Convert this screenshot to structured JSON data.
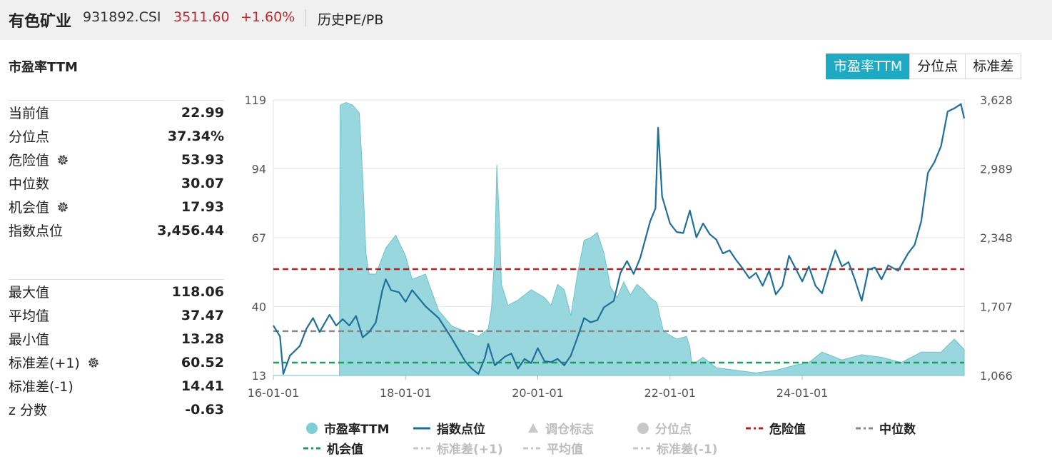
{
  "header": {
    "name": "有色矿业",
    "code": "931892.CSI",
    "price": "3511.60",
    "change": "+1.60%",
    "link": "历史PE/PB"
  },
  "section_title": "市盈率TTM",
  "tabs": [
    "市盈率TTM",
    "分位点",
    "标准差"
  ],
  "stats_top": [
    {
      "label": "当前值",
      "value": "22.99"
    },
    {
      "label": "分位点",
      "value": "37.34%"
    },
    {
      "label": "危险值",
      "value": "53.93"
    },
    {
      "label": "中位数",
      "value": "30.07"
    },
    {
      "label": "机会值",
      "value": "17.93"
    },
    {
      "label": "指数点位",
      "value": "3,456.44"
    }
  ],
  "stats_bottom": [
    {
      "label": "最大值",
      "value": "118.06"
    },
    {
      "label": "平均值",
      "value": "37.47"
    },
    {
      "label": "最小值",
      "value": "13.28"
    },
    {
      "label": "标准差(+1)",
      "value": "60.52"
    },
    {
      "label": "标准差(-1)",
      "value": "14.41"
    },
    {
      "label": "z 分数",
      "value": "-0.63"
    }
  ],
  "legend": [
    {
      "label": "市盈率TTM",
      "marker": "circle",
      "color": "#7fcdd5",
      "active": true
    },
    {
      "label": "指数点位",
      "marker": "line",
      "color": "#1f6f9a",
      "active": true
    },
    {
      "label": "调仓标志",
      "marker": "triangle",
      "color": "#c8c8c8",
      "active": false
    },
    {
      "label": "分位点",
      "marker": "circle",
      "color": "#c8c8c8",
      "active": false
    },
    {
      "label": "危险值",
      "marker": "dash",
      "color": "#b22222",
      "active": true
    },
    {
      "label": "中位数",
      "marker": "dash",
      "color": "#888888",
      "active": true
    },
    {
      "label": "机会值",
      "marker": "dash",
      "color": "#1e9e5a",
      "active": true
    },
    {
      "label": "标准差(+1)",
      "marker": "dash",
      "color": "#c8c8c8",
      "active": false
    },
    {
      "label": "平均值",
      "marker": "dash",
      "color": "#c8c8c8",
      "active": false
    },
    {
      "label": "标准差(-1)",
      "marker": "dash",
      "color": "#c8c8c8",
      "active": false
    }
  ],
  "chart_data": {
    "type": "area",
    "x_ticks": [
      "16-01-01",
      "18-01-01",
      "20-01-01",
      "22-01-01",
      "24-01-01"
    ],
    "x_range": [
      2016.0,
      2026.45
    ],
    "left_axis": {
      "ticks": [
        "119",
        "94",
        "67",
        "40",
        "13"
      ],
      "range": [
        13,
        119
      ]
    },
    "right_axis": {
      "ticks": [
        "3,628",
        "2,989",
        "2,348",
        "1,707",
        "1,066"
      ],
      "range": [
        1066,
        3628
      ]
    },
    "reference_lines": {
      "危险值": 53.93,
      "中位数": 30.07,
      "机会值": 17.93
    },
    "series": [
      {
        "name": "市盈率TTM",
        "axis": "left",
        "points": [
          [
            2016.0,
            13
          ],
          [
            2016.2,
            13
          ],
          [
            2016.5,
            13
          ],
          [
            2016.8,
            13
          ],
          [
            2017.0,
            13
          ],
          [
            2017.01,
            117
          ],
          [
            2017.1,
            118
          ],
          [
            2017.2,
            117
          ],
          [
            2017.3,
            114
          ],
          [
            2017.35,
            90
          ],
          [
            2017.4,
            60
          ],
          [
            2017.45,
            52
          ],
          [
            2017.55,
            52
          ],
          [
            2017.7,
            62
          ],
          [
            2017.85,
            67
          ],
          [
            2018.0,
            59
          ],
          [
            2018.1,
            50
          ],
          [
            2018.3,
            52
          ],
          [
            2018.5,
            38
          ],
          [
            2018.7,
            32
          ],
          [
            2018.9,
            30
          ],
          [
            2019.1,
            28
          ],
          [
            2019.25,
            31
          ],
          [
            2019.3,
            39
          ],
          [
            2019.35,
            60
          ],
          [
            2019.38,
            94
          ],
          [
            2019.42,
            72
          ],
          [
            2019.45,
            48
          ],
          [
            2019.55,
            40
          ],
          [
            2019.7,
            42
          ],
          [
            2019.9,
            46
          ],
          [
            2020.1,
            43
          ],
          [
            2020.2,
            40
          ],
          [
            2020.3,
            48
          ],
          [
            2020.4,
            46
          ],
          [
            2020.5,
            36
          ],
          [
            2020.6,
            52
          ],
          [
            2020.7,
            65
          ],
          [
            2020.8,
            66
          ],
          [
            2020.9,
            68
          ],
          [
            2021.0,
            60
          ],
          [
            2021.1,
            47
          ],
          [
            2021.2,
            43
          ],
          [
            2021.3,
            49
          ],
          [
            2021.4,
            44
          ],
          [
            2021.5,
            48
          ],
          [
            2021.6,
            46
          ],
          [
            2021.7,
            43
          ],
          [
            2021.8,
            41
          ],
          [
            2021.9,
            30
          ],
          [
            2022.1,
            27
          ],
          [
            2022.25,
            28
          ],
          [
            2022.3,
            24
          ],
          [
            2022.33,
            17
          ],
          [
            2022.5,
            20
          ],
          [
            2022.7,
            16
          ],
          [
            2023.0,
            15
          ],
          [
            2023.3,
            14
          ],
          [
            2023.6,
            15
          ],
          [
            2023.9,
            17
          ],
          [
            2024.1,
            18
          ],
          [
            2024.3,
            22
          ],
          [
            2024.6,
            19
          ],
          [
            2024.9,
            21
          ],
          [
            2025.2,
            20
          ],
          [
            2025.5,
            18
          ],
          [
            2025.8,
            22
          ],
          [
            2026.1,
            22
          ],
          [
            2026.3,
            27
          ],
          [
            2026.45,
            23
          ]
        ]
      },
      {
        "name": "指数点位",
        "axis": "right",
        "points": [
          [
            2016.0,
            1530
          ],
          [
            2016.1,
            1430
          ],
          [
            2016.15,
            1080
          ],
          [
            2016.25,
            1250
          ],
          [
            2016.4,
            1340
          ],
          [
            2016.5,
            1500
          ],
          [
            2016.6,
            1600
          ],
          [
            2016.7,
            1470
          ],
          [
            2016.85,
            1630
          ],
          [
            2016.95,
            1530
          ],
          [
            2017.05,
            1590
          ],
          [
            2017.15,
            1530
          ],
          [
            2017.25,
            1620
          ],
          [
            2017.35,
            1420
          ],
          [
            2017.45,
            1470
          ],
          [
            2017.55,
            1560
          ],
          [
            2017.65,
            1860
          ],
          [
            2017.7,
            1960
          ],
          [
            2017.78,
            1860
          ],
          [
            2017.9,
            1840
          ],
          [
            2018.0,
            1750
          ],
          [
            2018.1,
            1860
          ],
          [
            2018.3,
            1710
          ],
          [
            2018.5,
            1600
          ],
          [
            2018.7,
            1410
          ],
          [
            2018.9,
            1200
          ],
          [
            2019.0,
            1130
          ],
          [
            2019.1,
            1080
          ],
          [
            2019.2,
            1230
          ],
          [
            2019.25,
            1360
          ],
          [
            2019.35,
            1160
          ],
          [
            2019.5,
            1240
          ],
          [
            2019.6,
            1270
          ],
          [
            2019.7,
            1130
          ],
          [
            2019.8,
            1220
          ],
          [
            2019.9,
            1180
          ],
          [
            2020.0,
            1320
          ],
          [
            2020.1,
            1200
          ],
          [
            2020.2,
            1190
          ],
          [
            2020.3,
            1220
          ],
          [
            2020.4,
            1160
          ],
          [
            2020.5,
            1250
          ],
          [
            2020.6,
            1420
          ],
          [
            2020.7,
            1600
          ],
          [
            2020.8,
            1560
          ],
          [
            2020.9,
            1580
          ],
          [
            2021.0,
            1700
          ],
          [
            2021.15,
            1760
          ],
          [
            2021.25,
            2020
          ],
          [
            2021.35,
            2130
          ],
          [
            2021.45,
            2010
          ],
          [
            2021.55,
            2160
          ],
          [
            2021.7,
            2500
          ],
          [
            2021.78,
            2620
          ],
          [
            2021.82,
            3370
          ],
          [
            2021.88,
            2730
          ],
          [
            2022.0,
            2480
          ],
          [
            2022.1,
            2400
          ],
          [
            2022.2,
            2390
          ],
          [
            2022.3,
            2600
          ],
          [
            2022.4,
            2350
          ],
          [
            2022.5,
            2480
          ],
          [
            2022.6,
            2380
          ],
          [
            2022.7,
            2330
          ],
          [
            2022.8,
            2200
          ],
          [
            2022.9,
            2230
          ],
          [
            2023.0,
            2140
          ],
          [
            2023.1,
            2060
          ],
          [
            2023.2,
            1970
          ],
          [
            2023.3,
            2020
          ],
          [
            2023.4,
            1900
          ],
          [
            2023.5,
            2040
          ],
          [
            2023.6,
            1820
          ],
          [
            2023.7,
            1900
          ],
          [
            2023.8,
            2180
          ],
          [
            2023.9,
            2060
          ],
          [
            2024.0,
            1940
          ],
          [
            2024.1,
            2080
          ],
          [
            2024.2,
            1900
          ],
          [
            2024.3,
            1830
          ],
          [
            2024.4,
            2040
          ],
          [
            2024.5,
            2230
          ],
          [
            2024.6,
            2080
          ],
          [
            2024.7,
            2120
          ],
          [
            2024.8,
            1950
          ],
          [
            2024.9,
            1760
          ],
          [
            2025.0,
            2050
          ],
          [
            2025.1,
            2070
          ],
          [
            2025.2,
            1960
          ],
          [
            2025.3,
            2090
          ],
          [
            2025.45,
            2040
          ],
          [
            2025.6,
            2200
          ],
          [
            2025.7,
            2280
          ],
          [
            2025.8,
            2500
          ],
          [
            2025.9,
            2950
          ],
          [
            2026.0,
            3050
          ],
          [
            2026.1,
            3200
          ],
          [
            2026.2,
            3520
          ],
          [
            2026.3,
            3550
          ],
          [
            2026.4,
            3590
          ],
          [
            2026.45,
            3456
          ]
        ]
      }
    ]
  }
}
